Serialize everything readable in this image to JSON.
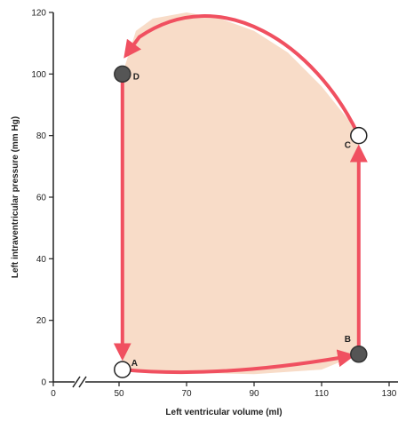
{
  "chart_data": {
    "type": "line",
    "title": "",
    "xlabel": "Left ventricular volume (ml)",
    "ylabel": "Left intraventricular pressure (mm Hg)",
    "x_ticks": [
      "0",
      "50",
      "70",
      "90",
      "110",
      "130"
    ],
    "y_ticks": [
      "0",
      "20",
      "40",
      "60",
      "80",
      "100",
      "120"
    ],
    "x_axis_break": true,
    "xlim": [
      50,
      130
    ],
    "ylim": [
      0,
      120
    ],
    "grid": false,
    "legend": "none",
    "series": [
      {
        "color": "#f05060",
        "fill": "#f8dcc8",
        "x": [
          51,
          70,
          90,
          110,
          121,
          121,
          121,
          118,
          110,
          100,
          90,
          80,
          70,
          60,
          55,
          51,
          51,
          51
        ],
        "y": [
          4,
          3,
          2.5,
          4,
          9,
          40,
          80,
          85,
          96,
          107,
          114,
          118,
          120,
          118,
          114,
          100,
          50,
          4
        ]
      }
    ],
    "points": [
      {
        "label": "A",
        "x": 51,
        "y": 4,
        "filled": false
      },
      {
        "label": "B",
        "x": 121,
        "y": 9,
        "filled": true
      },
      {
        "label": "C",
        "x": 121,
        "y": 80,
        "filled": false
      },
      {
        "label": "D",
        "x": 51,
        "y": 100,
        "filled": true
      }
    ]
  }
}
